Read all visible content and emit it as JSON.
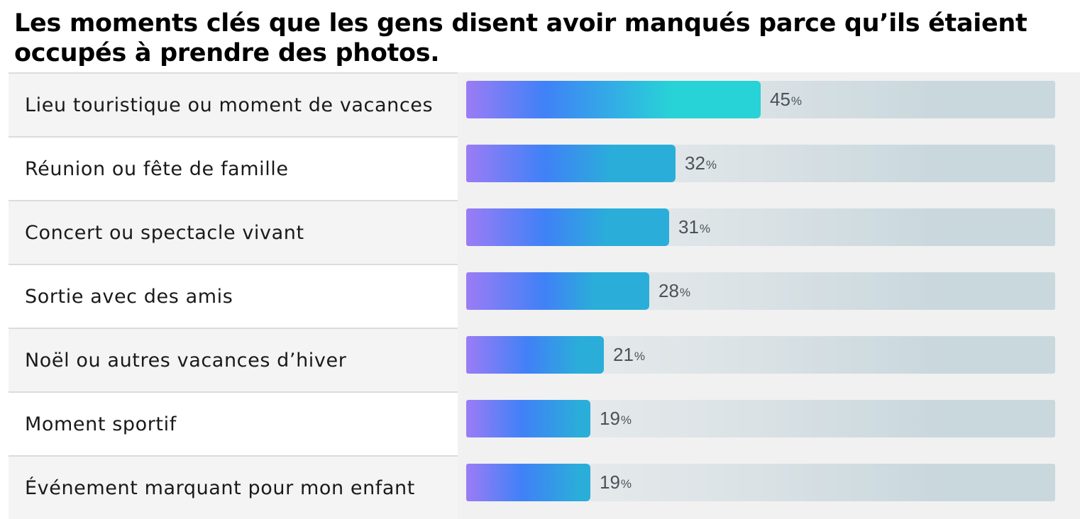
{
  "chart_data": {
    "type": "bar",
    "orientation": "horizontal",
    "title": "Les moments clés que les gens disent avoir manqués parce qu’ils étaient occupés à prendre des photos.",
    "categories": [
      "Lieu touristique ou moment de vacances",
      "Réunion ou fête de famille",
      "Concert ou spectacle vivant",
      "Sortie avec des amis",
      "Noël ou autres vacances d’hiver",
      "Moment sportif",
      "Événement marquant pour mon enfant"
    ],
    "values": [
      45,
      32,
      31,
      28,
      21,
      19,
      19
    ],
    "value_suffix": "%",
    "xlim": [
      0,
      90
    ],
    "colors": {
      "gradient_start": "#9b7cf5",
      "gradient_mid": "#4081f7",
      "gradient_end": "#27d3d6"
    }
  }
}
